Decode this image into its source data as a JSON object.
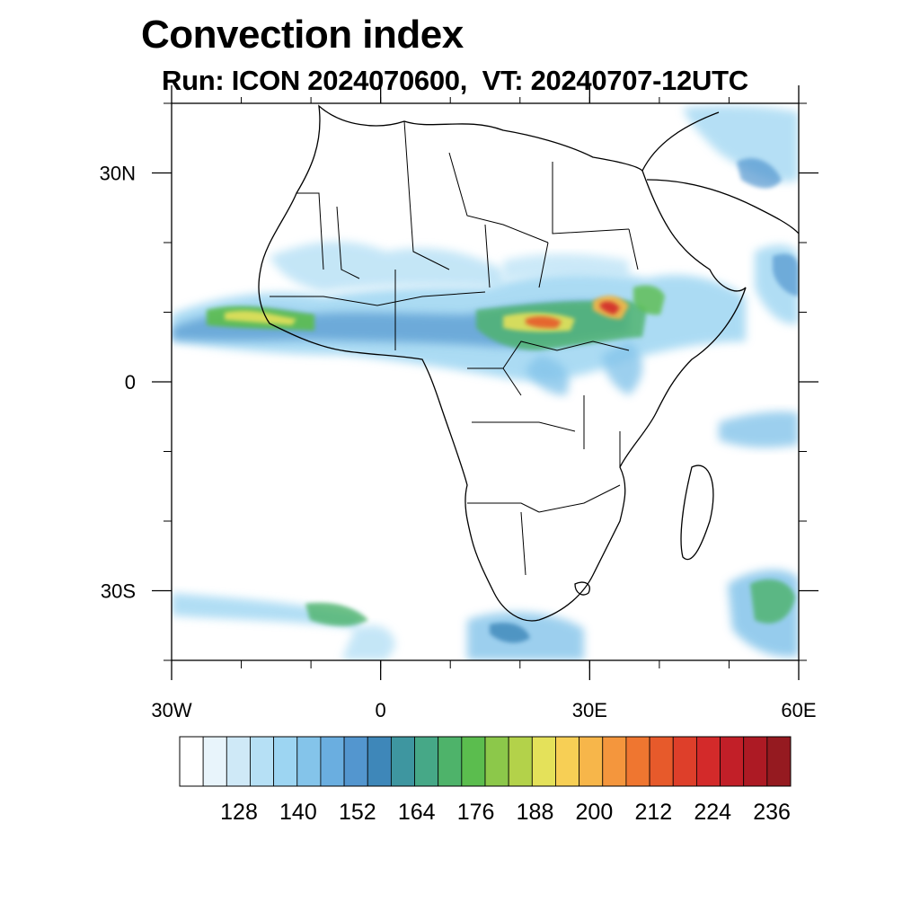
{
  "title": "Convection index",
  "subtitle": "Run: ICON 2024070600,  VT: 20240707-12UTC",
  "map": {
    "lon_range": [
      -30,
      60
    ],
    "lat_range": [
      -40,
      40
    ],
    "lat_ticks": [
      {
        "value": 30,
        "label": "30N"
      },
      {
        "value": 0,
        "label": "0"
      },
      {
        "value": -30,
        "label": "30S"
      }
    ],
    "lon_ticks": [
      {
        "value": -30,
        "label": "30W"
      },
      {
        "value": 0,
        "label": "0"
      },
      {
        "value": 30,
        "label": "30E"
      },
      {
        "value": 60,
        "label": "60E"
      }
    ]
  },
  "colorbar": {
    "colors": [
      "#ffffff",
      "#e8f4fb",
      "#cfe9f7",
      "#b6e0f5",
      "#9dd5f2",
      "#84c4ea",
      "#6aaee0",
      "#5396cf",
      "#3e87b9",
      "#3e96a0",
      "#46a887",
      "#4eb36a",
      "#5bbd4e",
      "#8cc84a",
      "#b3d24a",
      "#e4e15a",
      "#f7cf55",
      "#f7b64a",
      "#f4963d",
      "#ef7630",
      "#e75a2b",
      "#de3f2a",
      "#d32a2a",
      "#c21f28",
      "#ad1a24",
      "#951a20"
    ],
    "labels": [
      "128",
      "140",
      "152",
      "164",
      "176",
      "188",
      "200",
      "212",
      "224",
      "236"
    ]
  }
}
